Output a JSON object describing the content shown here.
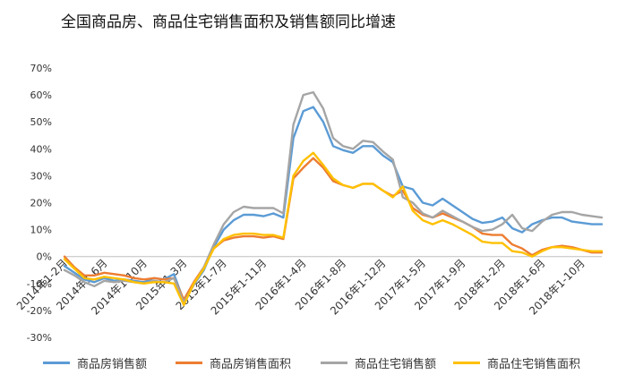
{
  "chart_data": {
    "type": "line",
    "title": "全国商品房、商品住宅销售面积及销售额同比增速",
    "y_ticks": [
      "70%",
      "60%",
      "50%",
      "40%",
      "30%",
      "20%",
      "10%",
      "0%",
      "-10%",
      "-20%",
      "-30%"
    ],
    "ylim": [
      -30,
      70
    ],
    "grid": false,
    "legend_position": "bottom",
    "x_labels": [
      "2014年1-2月",
      "2014年1-6月",
      "2014年1-10月",
      "2015年1-3月",
      "2015年1-7月",
      "2015年1-11月",
      "2016年1-4月",
      "2016年1-8月",
      "2016年1-12月",
      "2017年1-5月",
      "2017年1-9月",
      "2018年1-2月",
      "2018年1-6月",
      "2018年1-10月"
    ],
    "x_label_index": [
      0,
      4,
      8,
      12,
      16,
      20,
      24,
      28,
      32,
      36,
      40,
      44,
      48,
      52
    ],
    "series": [
      {
        "name": "商品房销售额",
        "color": "#5b9bd5",
        "values": [
          -3.5,
          -6,
          -8.5,
          -9.5,
          -8,
          -9,
          -8.5,
          -9,
          -9.5,
          -8,
          -8.5,
          -6.5,
          -16.5,
          -10.5,
          -5,
          3.5,
          10,
          13.5,
          15.5,
          15.5,
          15,
          16,
          14.5,
          44,
          54,
          55.5,
          50,
          41,
          39.5,
          38.5,
          41,
          41,
          37.5,
          35,
          26,
          25,
          20,
          19,
          21.5,
          19,
          16.5,
          14,
          12.5,
          13,
          14.5,
          10.5,
          9,
          12,
          13.5,
          14.5,
          14.5,
          13,
          12.5,
          12,
          12
        ]
      },
      {
        "name": "商品房销售面积",
        "color": "#ed7d31",
        "values": [
          0,
          -4,
          -7,
          -7,
          -6,
          -6.5,
          -7,
          -8,
          -8.5,
          -8,
          -8.5,
          -8,
          -16,
          -9.5,
          -4,
          3,
          6,
          7,
          7.5,
          7.5,
          7,
          7.5,
          6.5,
          29,
          33,
          36.5,
          33,
          28,
          26.5,
          25.5,
          27,
          27,
          24.5,
          22.5,
          24.5,
          18,
          15.5,
          14.5,
          16,
          14.5,
          13,
          11,
          8.5,
          8,
          8,
          4.5,
          3,
          0.5,
          2.5,
          3.5,
          4,
          3.5,
          2.5,
          1.5,
          1.5
        ]
      },
      {
        "name": "商品住宅销售额",
        "color": "#a5a5a5",
        "values": [
          -5,
          -7,
          -9.5,
          -11,
          -9,
          -9.5,
          -9,
          -9.5,
          -10,
          -9,
          -9.5,
          -8,
          -17,
          -10.5,
          -4,
          4.5,
          12,
          16.5,
          18.5,
          18,
          18,
          18,
          16,
          49,
          60,
          61,
          55,
          44,
          41,
          40,
          43,
          42.5,
          39,
          36,
          22,
          20,
          16,
          14.5,
          17,
          15,
          13,
          11,
          9.5,
          10,
          12,
          15.5,
          10.5,
          9.5,
          13,
          15.5,
          16.5,
          16.5,
          15.5,
          15,
          14.5
        ]
      },
      {
        "name": "商品住宅销售面积",
        "color": "#ffc000",
        "values": [
          -1,
          -4.5,
          -8,
          -8.5,
          -7.5,
          -8,
          -8.5,
          -9.5,
          -10,
          -9.5,
          -9.5,
          -10,
          -18,
          -10,
          -4.5,
          3,
          6.5,
          8,
          8.5,
          8.5,
          8,
          8,
          7,
          30,
          35.5,
          38.5,
          34,
          29,
          26.5,
          25.5,
          27,
          27,
          24.5,
          22,
          26,
          17,
          13.5,
          12,
          13.5,
          12,
          10,
          8,
          5.5,
          5,
          5,
          2,
          1.5,
          0,
          2,
          3.5,
          3.5,
          3,
          2.5,
          2,
          2
        ]
      }
    ]
  }
}
